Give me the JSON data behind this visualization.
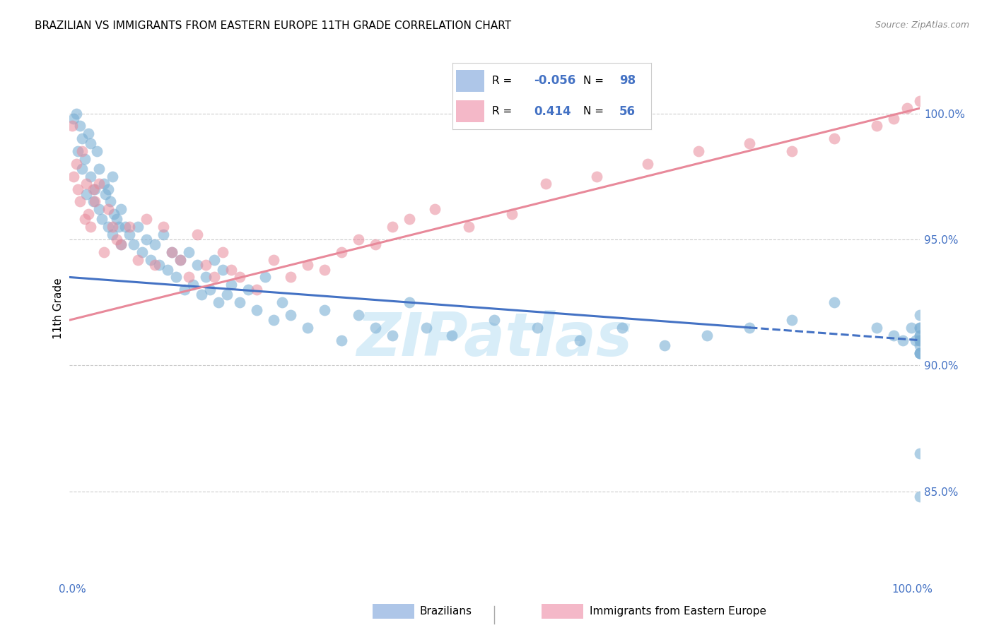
{
  "title": "BRAZILIAN VS IMMIGRANTS FROM EASTERN EUROPE 11TH GRADE CORRELATION CHART",
  "source": "Source: ZipAtlas.com",
  "ylabel": "11th Grade",
  "yaxis_labels": [
    "85.0%",
    "90.0%",
    "95.0%",
    "100.0%"
  ],
  "yaxis_values": [
    85.0,
    90.0,
    95.0,
    100.0
  ],
  "xlim": [
    0.0,
    100.0
  ],
  "ylim": [
    82.0,
    102.5
  ],
  "background_color": "#ffffff",
  "grid_color": "#cccccc",
  "watermark": "ZIPatlas",
  "watermark_color": "#d8edf8",
  "title_fontsize": 11,
  "axis_label_color": "#4472c4",
  "source_color": "#888888",
  "blue_trend_x": [
    0,
    100
  ],
  "blue_trend_y": [
    93.5,
    91.0
  ],
  "blue_trend_dash_from": 80,
  "blue_trend_color": "#4472c4",
  "pink_trend_x": [
    0,
    100
  ],
  "pink_trend_y": [
    91.8,
    100.2
  ],
  "pink_trend_color": "#e8899a",
  "blue_dot_color": "#7bafd4",
  "blue_dot_alpha": 0.6,
  "pink_dot_color": "#e8899a",
  "pink_dot_alpha": 0.55,
  "dot_size": 130,
  "blue_N": 98,
  "blue_R": "-0.056",
  "pink_N": 56,
  "pink_R": "0.414",
  "legend_box_color": "#aec6e8",
  "legend_box_color2": "#f4b8c8",
  "blue_points_x": [
    0.5,
    0.8,
    1.0,
    1.2,
    1.5,
    1.5,
    1.8,
    2.0,
    2.2,
    2.5,
    2.5,
    2.8,
    3.0,
    3.2,
    3.5,
    3.5,
    3.8,
    4.0,
    4.2,
    4.5,
    4.5,
    4.8,
    5.0,
    5.0,
    5.2,
    5.5,
    5.8,
    6.0,
    6.0,
    6.5,
    7.0,
    7.5,
    8.0,
    8.5,
    9.0,
    9.5,
    10.0,
    10.5,
    11.0,
    11.5,
    12.0,
    12.5,
    13.0,
    13.5,
    14.0,
    14.5,
    15.0,
    15.5,
    16.0,
    16.5,
    17.0,
    17.5,
    18.0,
    18.5,
    19.0,
    20.0,
    21.0,
    22.0,
    23.0,
    24.0,
    25.0,
    26.0,
    28.0,
    30.0,
    32.0,
    34.0,
    36.0,
    38.0,
    40.0,
    42.0,
    45.0,
    50.0,
    55.0,
    60.0,
    65.0,
    70.0,
    75.0,
    80.0,
    85.0,
    90.0,
    95.0,
    97.0,
    98.0,
    99.0,
    99.5,
    100.0,
    100.0,
    100.0,
    100.0,
    100.0,
    100.0,
    100.0,
    100.0,
    100.0,
    100.0,
    100.0,
    100.0,
    100.0
  ],
  "blue_points_y": [
    99.8,
    100.0,
    98.5,
    99.5,
    97.8,
    99.0,
    98.2,
    96.8,
    99.2,
    97.5,
    98.8,
    96.5,
    97.0,
    98.5,
    96.2,
    97.8,
    95.8,
    97.2,
    96.8,
    95.5,
    97.0,
    96.5,
    95.2,
    97.5,
    96.0,
    95.8,
    95.5,
    96.2,
    94.8,
    95.5,
    95.2,
    94.8,
    95.5,
    94.5,
    95.0,
    94.2,
    94.8,
    94.0,
    95.2,
    93.8,
    94.5,
    93.5,
    94.2,
    93.0,
    94.5,
    93.2,
    94.0,
    92.8,
    93.5,
    93.0,
    94.2,
    92.5,
    93.8,
    92.8,
    93.2,
    92.5,
    93.0,
    92.2,
    93.5,
    91.8,
    92.5,
    92.0,
    91.5,
    92.2,
    91.0,
    92.0,
    91.5,
    91.2,
    92.5,
    91.5,
    91.2,
    91.8,
    91.5,
    91.0,
    91.5,
    90.8,
    91.2,
    91.5,
    91.8,
    92.5,
    91.5,
    91.2,
    91.0,
    91.5,
    91.0,
    91.2,
    91.5,
    92.0,
    91.5,
    91.0,
    90.5,
    91.0,
    90.5,
    91.2,
    90.8,
    90.5,
    84.8,
    86.5
  ],
  "pink_points_x": [
    0.3,
    0.5,
    0.8,
    1.0,
    1.2,
    1.5,
    1.8,
    2.0,
    2.2,
    2.5,
    2.8,
    3.0,
    3.5,
    4.0,
    4.5,
    5.0,
    5.5,
    6.0,
    7.0,
    8.0,
    9.0,
    10.0,
    11.0,
    12.0,
    13.0,
    14.0,
    15.0,
    16.0,
    17.0,
    18.0,
    19.0,
    20.0,
    22.0,
    24.0,
    26.0,
    28.0,
    30.0,
    32.0,
    34.0,
    36.0,
    38.0,
    40.0,
    43.0,
    47.0,
    52.0,
    56.0,
    62.0,
    68.0,
    74.0,
    80.0,
    85.0,
    90.0,
    95.0,
    97.0,
    98.5,
    100.0
  ],
  "pink_points_y": [
    99.5,
    97.5,
    98.0,
    97.0,
    96.5,
    98.5,
    95.8,
    97.2,
    96.0,
    95.5,
    97.0,
    96.5,
    97.2,
    94.5,
    96.2,
    95.5,
    95.0,
    94.8,
    95.5,
    94.2,
    95.8,
    94.0,
    95.5,
    94.5,
    94.2,
    93.5,
    95.2,
    94.0,
    93.5,
    94.5,
    93.8,
    93.5,
    93.0,
    94.2,
    93.5,
    94.0,
    93.8,
    94.5,
    95.0,
    94.8,
    95.5,
    95.8,
    96.2,
    95.5,
    96.0,
    97.2,
    97.5,
    98.0,
    98.5,
    98.8,
    98.5,
    99.0,
    99.5,
    99.8,
    100.2,
    100.5
  ]
}
